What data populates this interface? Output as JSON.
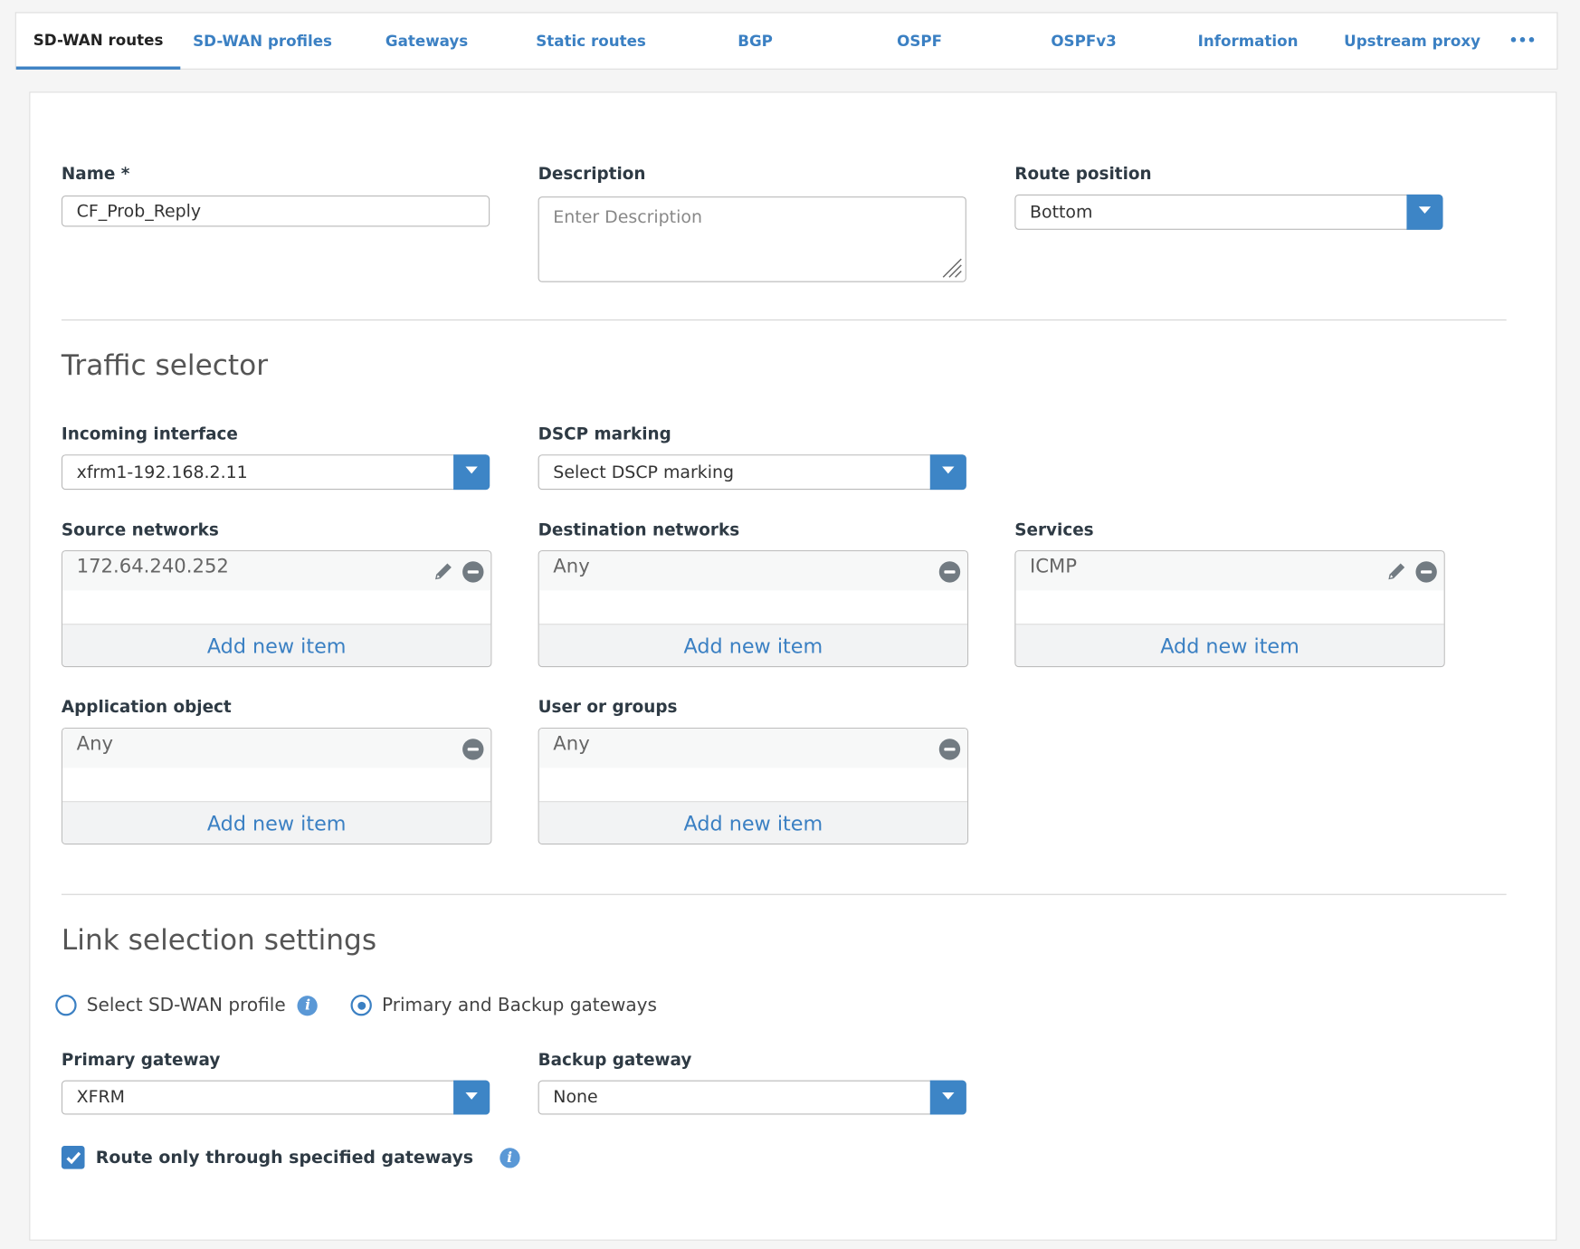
{
  "tabs": [
    {
      "label": "SD-WAN routes",
      "active": true
    },
    {
      "label": "SD-WAN profiles"
    },
    {
      "label": "Gateways"
    },
    {
      "label": "Static routes"
    },
    {
      "label": "BGP"
    },
    {
      "label": "OSPF"
    },
    {
      "label": "OSPFv3"
    },
    {
      "label": "Information"
    },
    {
      "label": "Upstream proxy"
    },
    {
      "label": "•••"
    }
  ],
  "form": {
    "name_label": "Name *",
    "name_value": "CF_Prob_Reply",
    "description_label": "Description",
    "description_placeholder": "Enter Description",
    "route_position_label": "Route position",
    "route_position_value": "Bottom"
  },
  "traffic": {
    "heading": "Traffic selector",
    "incoming_label": "Incoming interface",
    "incoming_value": "xfrm1-192.168.2.11",
    "dscp_label": "DSCP marking",
    "dscp_value": "Select DSCP marking",
    "source_label": "Source networks",
    "source_item": "172.64.240.252",
    "dest_label": "Destination networks",
    "dest_item": "Any",
    "services_label": "Services",
    "services_item": "ICMP",
    "app_label": "Application object",
    "app_item": "Any",
    "users_label": "User or groups",
    "users_item": "Any",
    "add_label": "Add new item"
  },
  "link": {
    "heading": "Link selection settings",
    "radio_profile": "Select SD-WAN profile",
    "radio_gateways": "Primary and Backup gateways",
    "selected": "Primary and Backup gateways",
    "primary_label": "Primary gateway",
    "primary_value": "XFRM",
    "backup_label": "Backup gateway",
    "backup_value": "None",
    "route_only_label": "Route only through specified gateways",
    "route_only_checked": true
  },
  "colors": {
    "accent": "#3b80c3"
  }
}
